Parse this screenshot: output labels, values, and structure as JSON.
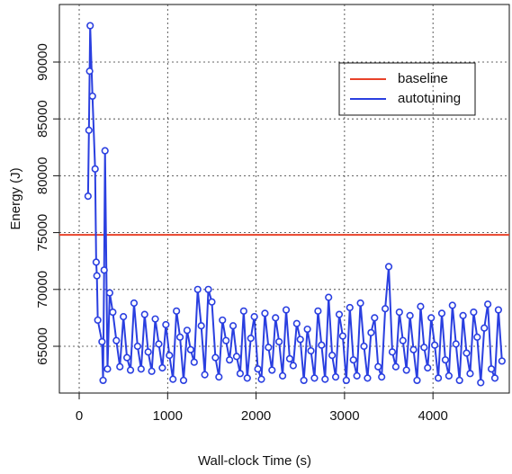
{
  "chart_data": {
    "type": "line",
    "title": null,
    "x_label": "Wall-clock Time (s)",
    "y_label": "Energy (J)",
    "xlim": [
      -224,
      4863
    ],
    "ylim": [
      60886,
      95063
    ],
    "xticks": [
      0,
      1000,
      2000,
      3000,
      4000
    ],
    "yticks": [
      65000,
      70000,
      75000,
      80000,
      85000,
      90000
    ],
    "grid": true,
    "legend": "top-right",
    "baseline": {
      "name": "baseline",
      "color": "#e8422a",
      "value": 74800
    },
    "series": [
      {
        "name": "autotuning",
        "color": "#2a3fe0",
        "x": [
          100,
          110,
          118,
          124,
          150,
          180,
          192,
          200,
          210,
          258,
          270,
          282,
          292,
          320,
          345,
          380,
          420,
          460,
          500,
          540,
          580,
          620,
          660,
          700,
          740,
          780,
          820,
          860,
          900,
          940,
          980,
          1020,
          1060,
          1100,
          1140,
          1180,
          1220,
          1260,
          1300,
          1340,
          1380,
          1420,
          1460,
          1500,
          1540,
          1580,
          1620,
          1660,
          1700,
          1740,
          1780,
          1820,
          1860,
          1900,
          1940,
          1980,
          2020,
          2060,
          2100,
          2140,
          2180,
          2220,
          2260,
          2300,
          2340,
          2380,
          2420,
          2460,
          2500,
          2540,
          2580,
          2620,
          2660,
          2700,
          2740,
          2780,
          2820,
          2860,
          2900,
          2940,
          2980,
          3020,
          3060,
          3100,
          3140,
          3180,
          3220,
          3260,
          3300,
          3340,
          3380,
          3420,
          3460,
          3500,
          3540,
          3580,
          3620,
          3660,
          3700,
          3740,
          3780,
          3820,
          3860,
          3900,
          3940,
          3980,
          4020,
          4060,
          4100,
          4140,
          4180,
          4220,
          4260,
          4300,
          4340,
          4380,
          4420,
          4460,
          4500,
          4540,
          4580,
          4620,
          4660,
          4700,
          4740,
          4780
        ],
        "values": [
          78200,
          84000,
          89200,
          93200,
          87000,
          80600,
          72400,
          71200,
          67300,
          65400,
          62000,
          71700,
          82200,
          63000,
          69700,
          68000,
          65500,
          63200,
          67600,
          64000,
          62900,
          68800,
          65000,
          63000,
          67800,
          64500,
          62800,
          67400,
          65200,
          63100,
          66900,
          64200,
          62100,
          68100,
          65800,
          62000,
          66400,
          64700,
          63600,
          70000,
          66800,
          62500,
          70000,
          68900,
          64000,
          62300,
          67300,
          65500,
          63800,
          66800,
          64100,
          62600,
          68100,
          62200,
          65700,
          67600,
          63000,
          62100,
          67900,
          64900,
          62900,
          67500,
          65400,
          62400,
          68200,
          63900,
          63300,
          67000,
          65600,
          62000,
          66500,
          64600,
          62200,
          68100,
          65100,
          62100,
          69300,
          64200,
          62300,
          67800,
          65900,
          62000,
          68400,
          63800,
          62400,
          68800,
          65000,
          62200,
          66200,
          67500,
          63200,
          62300,
          68300,
          72000,
          64500,
          63200,
          68000,
          65500,
          62900,
          67700,
          64700,
          62000,
          68500,
          64900,
          63100,
          67500,
          65100,
          62200,
          67900,
          63800,
          62400,
          68600,
          65200,
          62000,
          67700,
          64400,
          62600,
          68000,
          65800,
          61800,
          66600,
          68700,
          63000,
          62200,
          68200,
          63700
        ]
      }
    ]
  }
}
